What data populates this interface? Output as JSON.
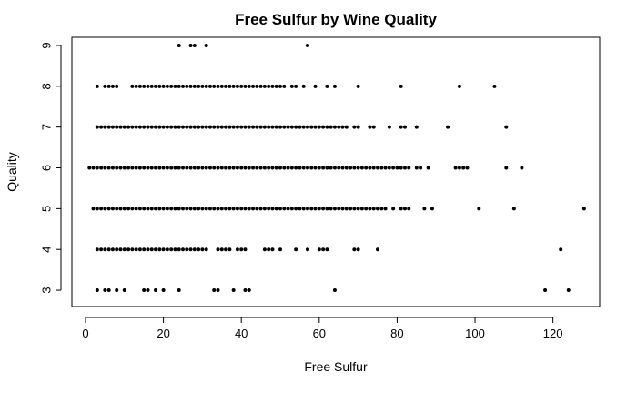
{
  "chart_data": {
    "type": "scatter",
    "title": "Free Sulfur by Wine Quality",
    "xlabel": "Free Sulfur",
    "ylabel": "Quality",
    "xlim": [
      -3.5,
      132
    ],
    "ylim": [
      2.6,
      9.2
    ],
    "xticks": [
      0,
      20,
      40,
      60,
      80,
      100,
      120
    ],
    "yticks": [
      3,
      4,
      5,
      6,
      7,
      8,
      9
    ],
    "series": [
      {
        "y": 9,
        "x": [
          24,
          27,
          28,
          31,
          57
        ]
      },
      {
        "y": 8,
        "x": [
          3,
          5,
          6,
          7,
          8,
          12,
          13,
          14,
          15,
          16,
          17,
          18,
          19,
          20,
          21,
          22,
          23,
          24,
          25,
          26,
          27,
          28,
          29,
          30,
          31,
          32,
          33,
          34,
          35,
          36,
          37,
          38,
          39,
          40,
          41,
          42,
          43,
          44,
          45,
          46,
          47,
          48,
          49,
          50,
          51,
          53,
          54,
          56,
          59,
          62,
          64,
          70,
          81,
          96,
          105
        ]
      },
      {
        "y": 7,
        "x": [
          3,
          4,
          5,
          6,
          7,
          8,
          9,
          10,
          11,
          12,
          13,
          14,
          15,
          16,
          17,
          18,
          19,
          20,
          21,
          22,
          23,
          24,
          25,
          26,
          27,
          28,
          29,
          30,
          31,
          32,
          33,
          34,
          35,
          36,
          37,
          38,
          39,
          40,
          41,
          42,
          43,
          44,
          45,
          46,
          47,
          48,
          49,
          50,
          51,
          52,
          53,
          54,
          55,
          56,
          57,
          58,
          59,
          60,
          61,
          62,
          63,
          64,
          65,
          66,
          67,
          69,
          70,
          73,
          74,
          78,
          81,
          82,
          85,
          93,
          108
        ]
      },
      {
        "y": 6,
        "x": [
          1,
          2,
          3,
          4,
          5,
          6,
          7,
          8,
          9,
          10,
          11,
          12,
          13,
          14,
          15,
          16,
          17,
          18,
          19,
          20,
          21,
          22,
          23,
          24,
          25,
          26,
          27,
          28,
          29,
          30,
          31,
          32,
          33,
          34,
          35,
          36,
          37,
          38,
          39,
          40,
          41,
          42,
          43,
          44,
          45,
          46,
          47,
          48,
          49,
          50,
          51,
          52,
          53,
          54,
          55,
          56,
          57,
          58,
          59,
          60,
          61,
          62,
          63,
          64,
          65,
          66,
          67,
          68,
          69,
          70,
          71,
          72,
          73,
          74,
          75,
          76,
          77,
          78,
          79,
          80,
          81,
          82,
          83,
          85,
          86,
          88,
          95,
          96,
          97,
          98,
          108,
          112
        ]
      },
      {
        "y": 5,
        "x": [
          2,
          3,
          4,
          5,
          6,
          7,
          8,
          9,
          10,
          11,
          12,
          13,
          14,
          15,
          16,
          17,
          18,
          19,
          20,
          21,
          22,
          23,
          24,
          25,
          26,
          27,
          28,
          29,
          30,
          31,
          32,
          33,
          34,
          35,
          36,
          37,
          38,
          39,
          40,
          41,
          42,
          43,
          44,
          45,
          46,
          47,
          48,
          49,
          50,
          51,
          52,
          53,
          54,
          55,
          56,
          57,
          58,
          59,
          60,
          61,
          62,
          63,
          64,
          65,
          66,
          67,
          68,
          69,
          70,
          71,
          72,
          73,
          74,
          75,
          76,
          77,
          79,
          81,
          82,
          83,
          87,
          89,
          101,
          110,
          128
        ]
      },
      {
        "y": 4,
        "x": [
          3,
          4,
          5,
          6,
          7,
          8,
          9,
          10,
          11,
          12,
          13,
          14,
          15,
          16,
          17,
          18,
          19,
          20,
          21,
          22,
          23,
          24,
          25,
          26,
          27,
          28,
          29,
          30,
          31,
          34,
          35,
          36,
          37,
          39,
          40,
          41,
          46,
          47,
          48,
          50,
          54,
          57,
          60,
          61,
          62,
          69,
          70,
          75,
          122
        ]
      },
      {
        "y": 3,
        "x": [
          3,
          5,
          6,
          8,
          10,
          15,
          16,
          18,
          20,
          24,
          33,
          34,
          38,
          41,
          42,
          64,
          118,
          124
        ]
      }
    ]
  }
}
